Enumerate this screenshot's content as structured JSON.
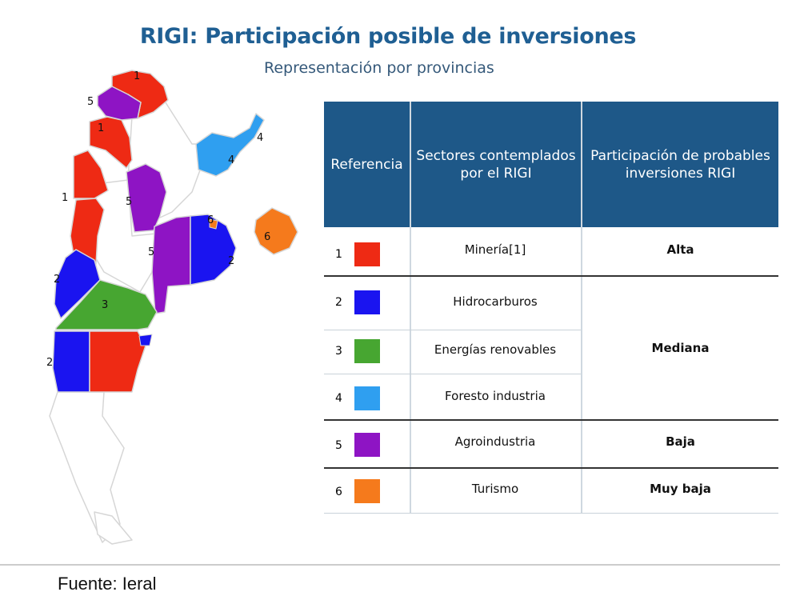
{
  "title": "RIGI: Participación posible de inversiones",
  "subtitle": "Representación por provincias",
  "table": {
    "headers": [
      "Referencia",
      "Sectores contemplados por el RIGI",
      "Participación de probables inversiones RIGI"
    ],
    "rows": [
      {
        "num": "1",
        "color": "#ee2a14",
        "sector": "Minería[1]"
      },
      {
        "num": "2",
        "color": "#1a14f0",
        "sector": "Hidrocarburos"
      },
      {
        "num": "3",
        "color": "#47a631",
        "sector": "Energías renovables"
      },
      {
        "num": "4",
        "color": "#2f9ff0",
        "sector": "Foresto industria"
      },
      {
        "num": "5",
        "color": "#8e14c4",
        "sector": "Agroindustria"
      },
      {
        "num": "6",
        "color": "#f57a1c",
        "sector": "Turismo"
      }
    ],
    "levels": {
      "alta": "Alta",
      "mediana": "Mediana",
      "baja": "Baja",
      "muy_baja": "Muy baja"
    }
  },
  "map": {
    "colors": {
      "1": "#ee2a14",
      "2": "#1a14f0",
      "3": "#47a631",
      "4": "#2f9ff0",
      "5": "#8e14c4",
      "6": "#f57a1c",
      "none": "#ffffff",
      "border": "#d6d6d6"
    },
    "labels": [
      "1",
      "5",
      "1",
      "4",
      "4",
      "1",
      "5",
      "6",
      "6",
      "5",
      "2",
      "2",
      "3",
      "2"
    ]
  },
  "source": "Fuente: Ieral"
}
